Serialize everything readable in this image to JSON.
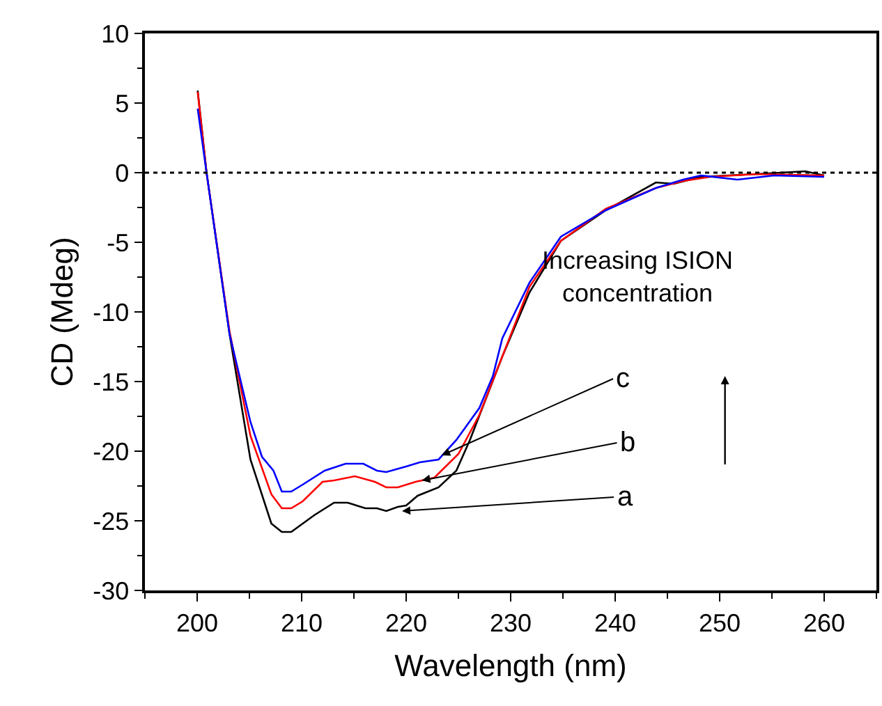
{
  "chart_data": {
    "type": "line",
    "xlabel": "Wavelength (nm)",
    "ylabel": "CD (Mdeg)",
    "xlim": [
      195,
      265
    ],
    "xticks": [
      200,
      210,
      220,
      230,
      240,
      250,
      260
    ],
    "ylim": [
      -30,
      10
    ],
    "yticks": [
      -30,
      -25,
      -20,
      -15,
      -10,
      -5,
      0,
      5,
      10
    ],
    "marker": "none",
    "line_style": "solid",
    "ref_lines": [
      {
        "axis": "y",
        "value": 0,
        "label": null,
        "color": "#000000",
        "line_style": "dotted"
      }
    ],
    "series": [
      {
        "color": "#000000",
        "x": [
          200.05,
          200.9,
          203.1,
          205.1,
          207.1,
          208.1,
          209,
          211.2,
          213.1,
          214.4,
          216.1,
          217.2,
          218.1,
          219.2,
          220,
          221.1,
          223.1,
          224.8,
          226.1,
          229.2,
          231.8,
          234.8,
          239.1,
          243.9,
          245.6,
          248.2,
          253.5,
          258.2,
          260
        ],
        "values": [
          5.9,
          0,
          -11.6,
          -20.6,
          -25.2,
          -25.8,
          -25.8,
          -24.6,
          -23.7,
          -23.7,
          -24.1,
          -24.1,
          -24.3,
          -24,
          -23.9,
          -23.2,
          -22.6,
          -21.4,
          -19.2,
          -13.2,
          -8.6,
          -4.9,
          -2.7,
          -0.7,
          -0.8,
          -0.3,
          -0.1,
          0.1,
          -0.2
        ]
      },
      {
        "color": "#ff0000",
        "x": [
          200.05,
          200.9,
          203.1,
          205.1,
          207.1,
          208.1,
          209,
          210.1,
          212,
          213.1,
          215.1,
          217,
          218.1,
          219.2,
          220.9,
          222.7,
          225,
          227,
          229.2,
          231.8,
          234.8,
          239.1,
          243.9,
          246.5,
          249.1,
          253.5,
          260
        ],
        "values": [
          5.8,
          0,
          -11.4,
          -18.9,
          -23.1,
          -24.1,
          -24.1,
          -23.6,
          -22.2,
          -22.1,
          -21.8,
          -22.2,
          -22.6,
          -22.6,
          -22.2,
          -21.9,
          -20.2,
          -17.4,
          -13.2,
          -8.2,
          -4.9,
          -2.6,
          -1.1,
          -0.6,
          -0.3,
          -0.1,
          -0.2
        ]
      },
      {
        "color": "#0000ff",
        "x": [
          200.05,
          200.9,
          203.1,
          205.1,
          206.2,
          207.3,
          208.1,
          209,
          210.1,
          212.2,
          214.2,
          215.9,
          217.2,
          218.1,
          220,
          221.3,
          223.1,
          224.8,
          227,
          228.3,
          229.2,
          231.8,
          234.8,
          239.1,
          243.9,
          246.5,
          248.2,
          251.7,
          255.2,
          260
        ],
        "values": [
          4.6,
          0,
          -11.6,
          -17.9,
          -20.4,
          -21.4,
          -22.9,
          -22.9,
          -22.4,
          -21.4,
          -20.9,
          -20.9,
          -21.4,
          -21.5,
          -21.1,
          -20.8,
          -20.6,
          -19.2,
          -16.9,
          -14.6,
          -11.9,
          -7.9,
          -4.6,
          -2.7,
          -1.1,
          -0.5,
          -0.2,
          -0.5,
          -0.2,
          -0.3
        ]
      }
    ],
    "annotations": [
      {
        "text": "a",
        "x": 219.6,
        "y": -24.3
      },
      {
        "text": "b",
        "x": 221.5,
        "y": -22.1
      },
      {
        "text": "c",
        "x": 223.4,
        "y": -20.3
      },
      "Increasing ISION\nconcentration"
    ]
  }
}
